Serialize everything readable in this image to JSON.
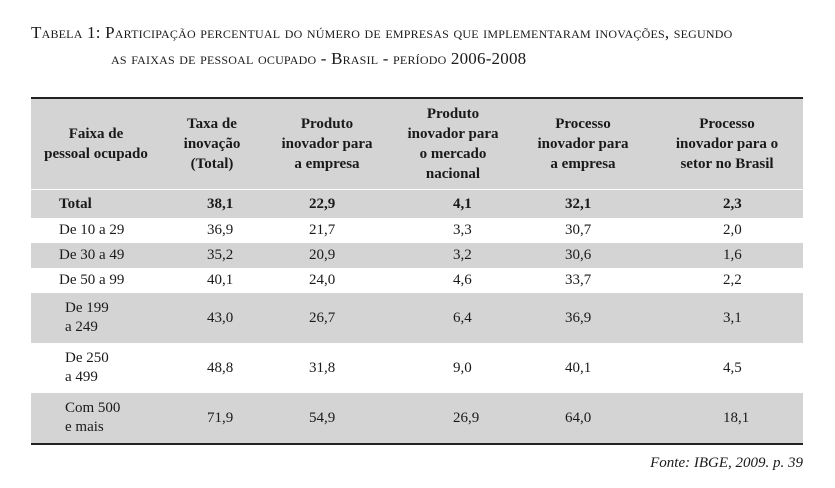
{
  "caption": {
    "line1": "Tabela 1: Participação percentual do número de empresas que implementaram inovações, segundo",
    "line2": "as faixas de pessoal ocupado - Brasil - período 2006-2008"
  },
  "table": {
    "headers": [
      "Faixa de pessoal ocupado",
      "Taxa de inovação (Total)",
      "Produto inovador para a empresa",
      "Produto inovador para o mercado nacional",
      "Processo inovador para a empresa",
      "Processo inovador para o setor no Brasil"
    ],
    "rows": [
      {
        "label": [
          "Total"
        ],
        "values": [
          "38,1",
          "22,9",
          "4,1",
          "32,1",
          "2,3"
        ]
      },
      {
        "label": [
          "De 10 a 29"
        ],
        "values": [
          "36,9",
          "21,7",
          "3,3",
          "30,7",
          "2,0"
        ]
      },
      {
        "label": [
          "De 30 a 49"
        ],
        "values": [
          "35,2",
          "20,9",
          "3,2",
          "30,6",
          "1,6"
        ]
      },
      {
        "label": [
          "De 50 a 99"
        ],
        "values": [
          "40,1",
          "24,0",
          "4,6",
          "33,7",
          "2,2"
        ]
      },
      {
        "label": [
          "De 199",
          "a 249"
        ],
        "values": [
          "43,0",
          "26,7",
          "6,4",
          "36,9",
          "3,1"
        ]
      },
      {
        "label": [
          "De 250",
          "a 499"
        ],
        "values": [
          "48,8",
          "31,8",
          "9,0",
          "40,1",
          "4,5"
        ]
      },
      {
        "label": [
          "Com 500",
          "e mais"
        ],
        "values": [
          "71,9",
          "54,9",
          "26,9",
          "64,0",
          "18,1"
        ]
      }
    ]
  },
  "source": "Fonte: IBGE, 2009. p. 39",
  "colors": {
    "shade": "#d4d4d4",
    "rule": "#222222"
  }
}
